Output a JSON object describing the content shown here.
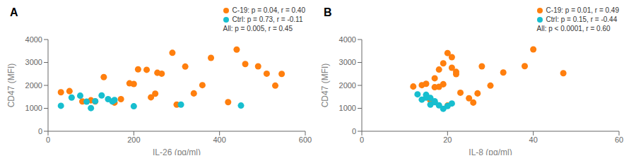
{
  "chart_data": [
    {
      "type": "scatter",
      "title": "A",
      "x_label": "IL-26 (pg/ml)",
      "y_label": "CD47 (MFI)",
      "xlim": [
        0,
        600
      ],
      "ylim": [
        0,
        4000
      ],
      "xticks": [
        0,
        200,
        400,
        600
      ],
      "yticks": [
        0,
        1000,
        2000,
        3000,
        4000
      ],
      "grid": false,
      "legend": "upper right",
      "annotations": [
        "All: p = 0.005, r = 0.45"
      ],
      "series": [
        {
          "name": "C-19: p = 0.04, r = 0.40",
          "color": "#FF7F0E",
          "x": [
            30,
            50,
            80,
            100,
            110,
            130,
            155,
            170,
            190,
            200,
            210,
            230,
            240,
            250,
            255,
            265,
            290,
            300,
            320,
            340,
            360,
            380,
            420,
            440,
            460,
            490,
            510,
            530,
            545
          ],
          "values": [
            1700,
            1750,
            1300,
            1350,
            1300,
            2360,
            1250,
            1400,
            2090,
            2060,
            2700,
            2680,
            1480,
            1640,
            2550,
            2510,
            3420,
            1160,
            2820,
            1650,
            2010,
            3200,
            1270,
            3560,
            2930,
            2830,
            2510,
            1990,
            2500
          ]
        },
        {
          "name": "Ctrl: p = 0.73, r = -0.11",
          "color": "#17BECF",
          "x": [
            30,
            55,
            75,
            90,
            100,
            110,
            125,
            140,
            150,
            155,
            200,
            310,
            450
          ],
          "values": [
            1110,
            1470,
            1550,
            1290,
            1010,
            1310,
            1560,
            1400,
            1300,
            1360,
            1090,
            1160,
            1120
          ]
        }
      ]
    },
    {
      "type": "scatter",
      "title": "B",
      "x_label": "IL-8 (pg/ml)",
      "y_label": "CD47 (MFI)",
      "xlim": [
        0,
        60
      ],
      "ylim": [
        0,
        4000
      ],
      "xticks": [
        0,
        20,
        40,
        60
      ],
      "yticks": [
        0,
        1000,
        2000,
        3000,
        4000
      ],
      "grid": false,
      "legend": "upper right",
      "annotations": [
        "All: p < 0.0001, r = 0.60"
      ],
      "series": [
        {
          "name": "C-19: p = 0.01, r = 0.49",
          "color": "#FF7F0E",
          "x": [
            12,
            14,
            15,
            16,
            17,
            17,
            18,
            18,
            19,
            19,
            20,
            20,
            21,
            21,
            22,
            22,
            23,
            25,
            26,
            27,
            28,
            30,
            33,
            38,
            40,
            47
          ],
          "values": [
            1950,
            2010,
            2070,
            1350,
            2310,
            1920,
            1940,
            2690,
            2960,
            2050,
            3410,
            1120,
            2770,
            3230,
            2590,
            2490,
            1680,
            1440,
            1250,
            1650,
            2830,
            1990,
            2560,
            2840,
            3570,
            2530
          ]
        },
        {
          "name": "Ctrl: p = 0.15, r = -0.44",
          "color": "#17BECF",
          "x": [
            13,
            14,
            15,
            15,
            16,
            16,
            17,
            17,
            18,
            19,
            20,
            21
          ],
          "values": [
            1610,
            1380,
            1470,
            1590,
            1450,
            1160,
            1270,
            1310,
            1130,
            980,
            1100,
            1210
          ]
        }
      ]
    }
  ]
}
